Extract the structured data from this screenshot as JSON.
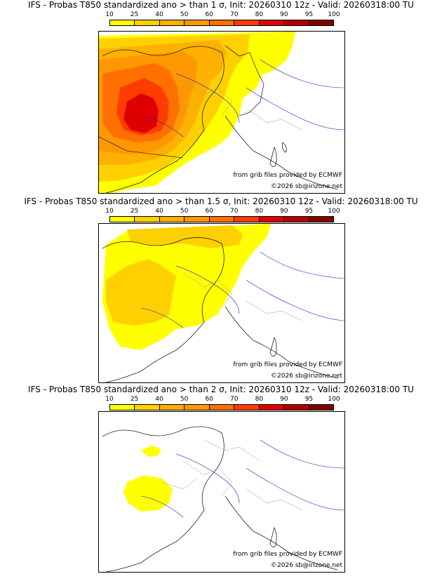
{
  "panels": [
    {
      "title": "IFS - Probas T850  standardized ano > than 1 σ, Init: 20260310 12z - Valid: 20260318:00 TU",
      "credit_source": "from grib files provided by ECMWF",
      "credit_copyright": "©2026 sb@irizone.net"
    },
    {
      "title": "IFS - Probas T850  standardized ano > than 1.5 σ, Init: 20260310 12z - Valid: 20260318:00 TU",
      "credit_source": "from grib files provided by ECMWF",
      "credit_copyright": "©2026 sb@irizone.net"
    },
    {
      "title": "IFS - Probas T850  standardized ano > than 2 σ, Init: 20260310 12z - Valid: 20260318:00 TU",
      "credit_source": "from grib files provided by ECMWF",
      "credit_copyright": "©2026 sb@irizone.net"
    }
  ],
  "legend": {
    "labels": [
      "10",
      "25",
      "40",
      "50",
      "60",
      "70",
      "80",
      "90",
      "95",
      "100"
    ],
    "colors": [
      "#ffff00",
      "#ffd000",
      "#ffb000",
      "#ff9800",
      "#ff7000",
      "#ff3c00",
      "#e00000",
      "#b00000",
      "#800000"
    ]
  }
}
